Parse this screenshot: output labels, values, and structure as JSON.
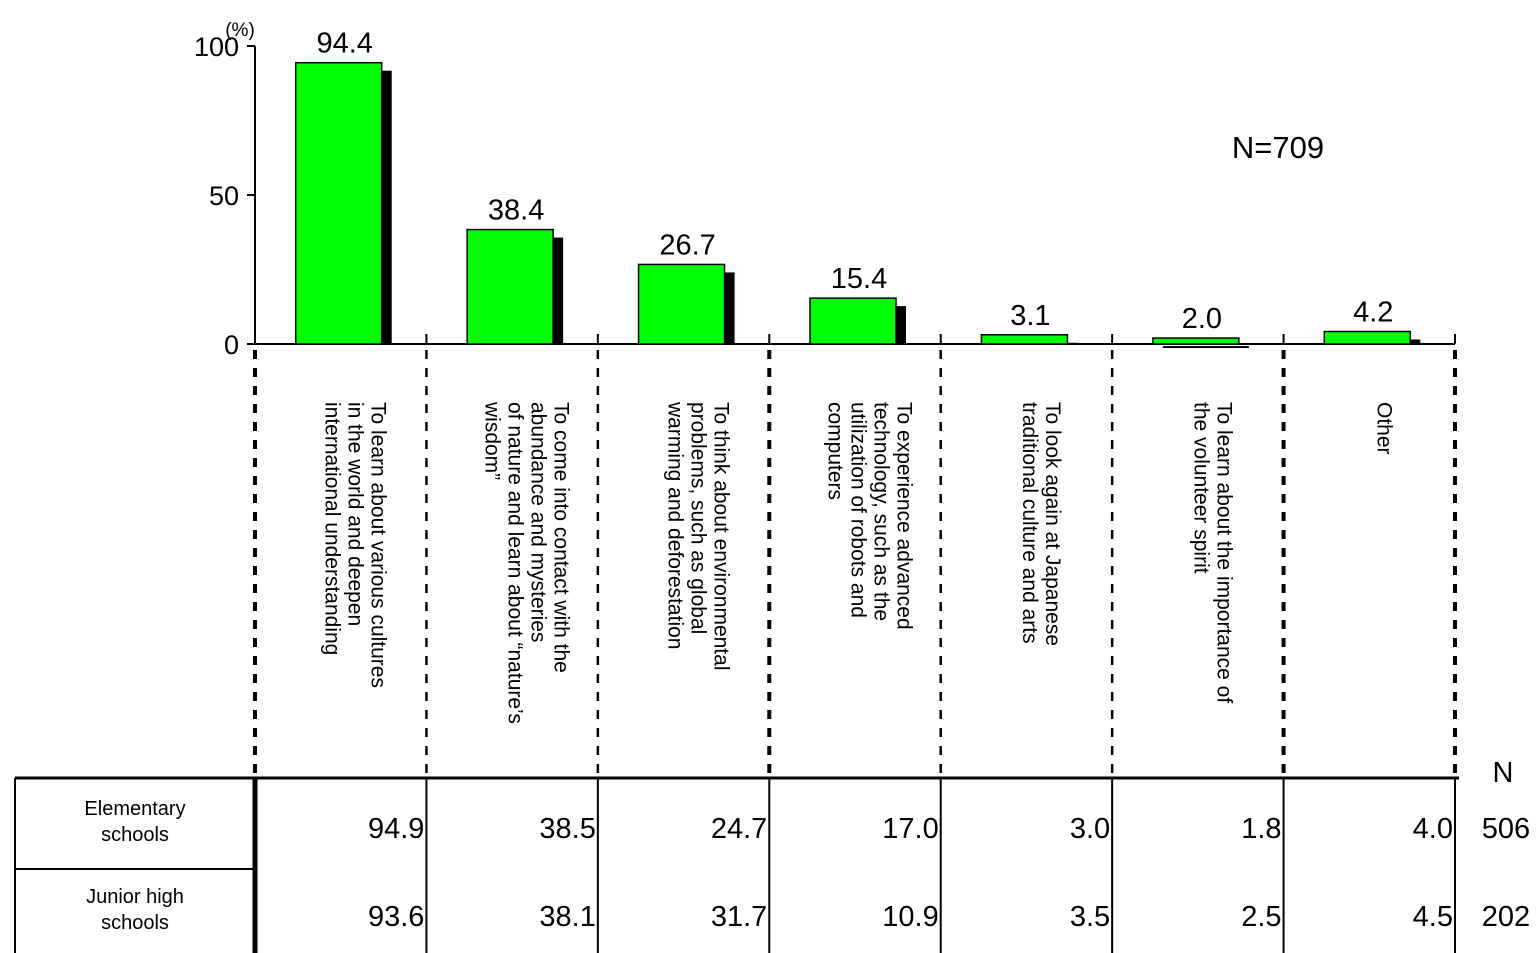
{
  "chart_data": {
    "type": "bar",
    "y_unit": "(%)",
    "n_label": "N=709",
    "ylim": [
      0,
      100
    ],
    "yticks": [
      0,
      50,
      100
    ],
    "categories": [
      [
        "To learn about various cultures",
        "in the world and deepen",
        "international understanding"
      ],
      [
        "To come into contact with the",
        "abundance and mysteries",
        "of nature and learn about “nature’s",
        "wisdom”"
      ],
      [
        "To think about environmental",
        "problems, such as global",
        "warming and deforestation"
      ],
      [
        "To experience advanced",
        "technology, such as the",
        "utilization of robots and",
        "computers"
      ],
      [
        "To look again at Japanese",
        "traditional culture and arts"
      ],
      [
        "To learn about the importance of",
        "the volunteer spirit"
      ],
      [
        "Other"
      ]
    ],
    "values": [
      94.4,
      38.4,
      26.7,
      15.4,
      3.1,
      2.0,
      4.2
    ],
    "value_labels": [
      "94.4",
      "38.4",
      "26.7",
      "15.4",
      "3.1",
      "2.0",
      "4.2"
    ],
    "bar_color": "#00ff00",
    "shadow_color": "#000000"
  },
  "table": {
    "n_header": "N",
    "rows": [
      {
        "label": [
          "Elementary",
          "schools"
        ],
        "values": [
          "94.9",
          "38.5",
          "24.7",
          "17.0",
          "3.0",
          "1.8",
          "4.0"
        ],
        "n": "506"
      },
      {
        "label": [
          "Junior high",
          "schools"
        ],
        "values": [
          "93.6",
          "38.1",
          "31.7",
          "10.9",
          "3.5",
          "2.5",
          "4.5"
        ],
        "n": "202"
      }
    ]
  }
}
